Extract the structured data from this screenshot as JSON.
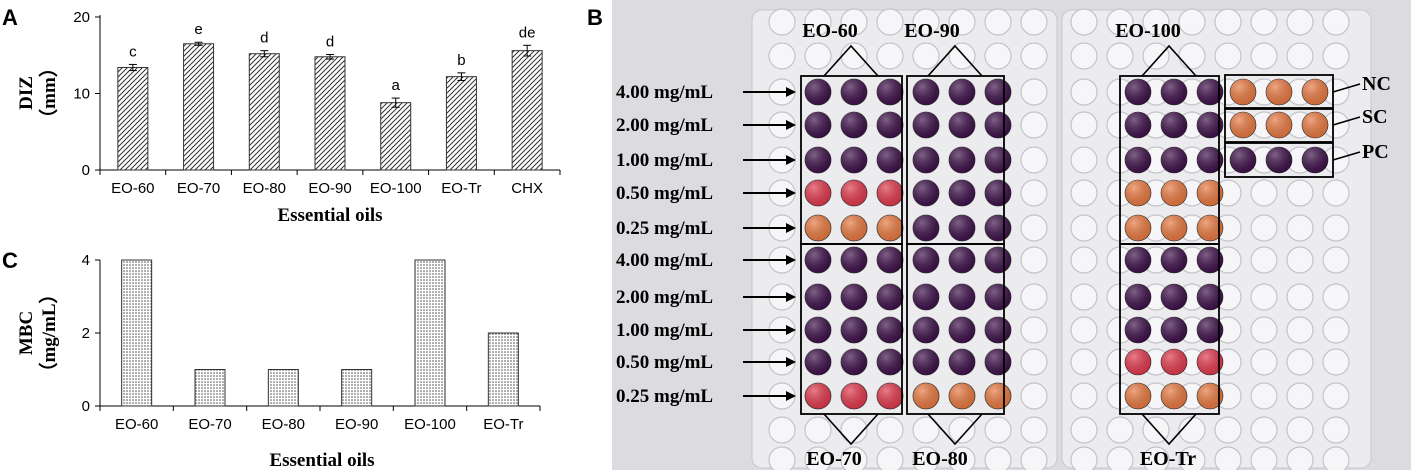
{
  "chart_data": [
    {
      "panel": "A",
      "type": "bar",
      "categories": [
        "EO-60",
        "EO-70",
        "EO-80",
        "EO-90",
        "EO-100",
        "EO-Tr",
        "CHX"
      ],
      "values": [
        13.4,
        16.5,
        15.2,
        14.8,
        8.8,
        12.2,
        15.6
      ],
      "errors": [
        0.4,
        0.2,
        0.4,
        0.3,
        0.6,
        0.5,
        0.7
      ],
      "significance": [
        "c",
        "e",
        "d",
        "d",
        "a",
        "b",
        "de"
      ],
      "yticks": [
        "0",
        "10",
        "20"
      ],
      "ylim": [
        0,
        20
      ],
      "xlabel": "Essential oils",
      "ylabel_main": "DIZ",
      "ylabel_unit": "（mm）",
      "pattern": "diagonal-hatch"
    },
    {
      "panel": "C",
      "type": "bar",
      "categories": [
        "EO-60",
        "EO-70",
        "EO-80",
        "EO-90",
        "EO-100",
        "EO-Tr"
      ],
      "values": [
        4,
        1,
        1,
        1,
        4,
        2
      ],
      "yticks": [
        "0",
        "2",
        "4"
      ],
      "ylim": [
        0,
        4
      ],
      "xlabel": "Essential oils",
      "ylabel_main": "MBC",
      "ylabel_unit": "（mg/mL）",
      "pattern": "dots"
    }
  ],
  "plate": {
    "panel": "B",
    "group_labels_top": [
      "EO-60",
      "EO-90",
      "EO-100"
    ],
    "group_labels_bottom": [
      "EO-70",
      "EO-80",
      "EO-Tr"
    ],
    "concentrations": [
      "4.00 mg/mL",
      "2.00 mg/mL",
      "1.00 mg/mL",
      "0.50 mg/mL",
      "0.25 mg/mL",
      "4.00 mg/mL",
      "2.00 mg/mL",
      "1.00 mg/mL",
      "0.50 mg/mL",
      "0.25 mg/mL"
    ],
    "controls": [
      "NC",
      "SC",
      "PC"
    ],
    "colors": {
      "purple": "#3b0d47",
      "purple_light": "#58206a",
      "pink": "#e0364a",
      "orange": "#e8773f",
      "plate_bg": "#e9e9ec",
      "empty_well": "#f6f6f8"
    },
    "wells": {
      "EO-60": [
        "purple",
        "purple",
        "purple",
        "pink",
        "orange"
      ],
      "EO-90": [
        "purple",
        "purple",
        "purple",
        "purple",
        "purple"
      ],
      "EO-100": [
        "purple",
        "purple",
        "purple",
        "orange",
        "orange"
      ],
      "EO-70": [
        "purple",
        "purple",
        "purple",
        "purple",
        "pink"
      ],
      "EO-80": [
        "purple",
        "purple",
        "purple",
        "purple",
        "orange"
      ],
      "EO-Tr": [
        "purple",
        "purple",
        "purple",
        "pink",
        "orange"
      ],
      "NC": "orange",
      "SC": "orange",
      "PC": "purple"
    }
  },
  "panel_letters": [
    "A",
    "B",
    "C"
  ]
}
